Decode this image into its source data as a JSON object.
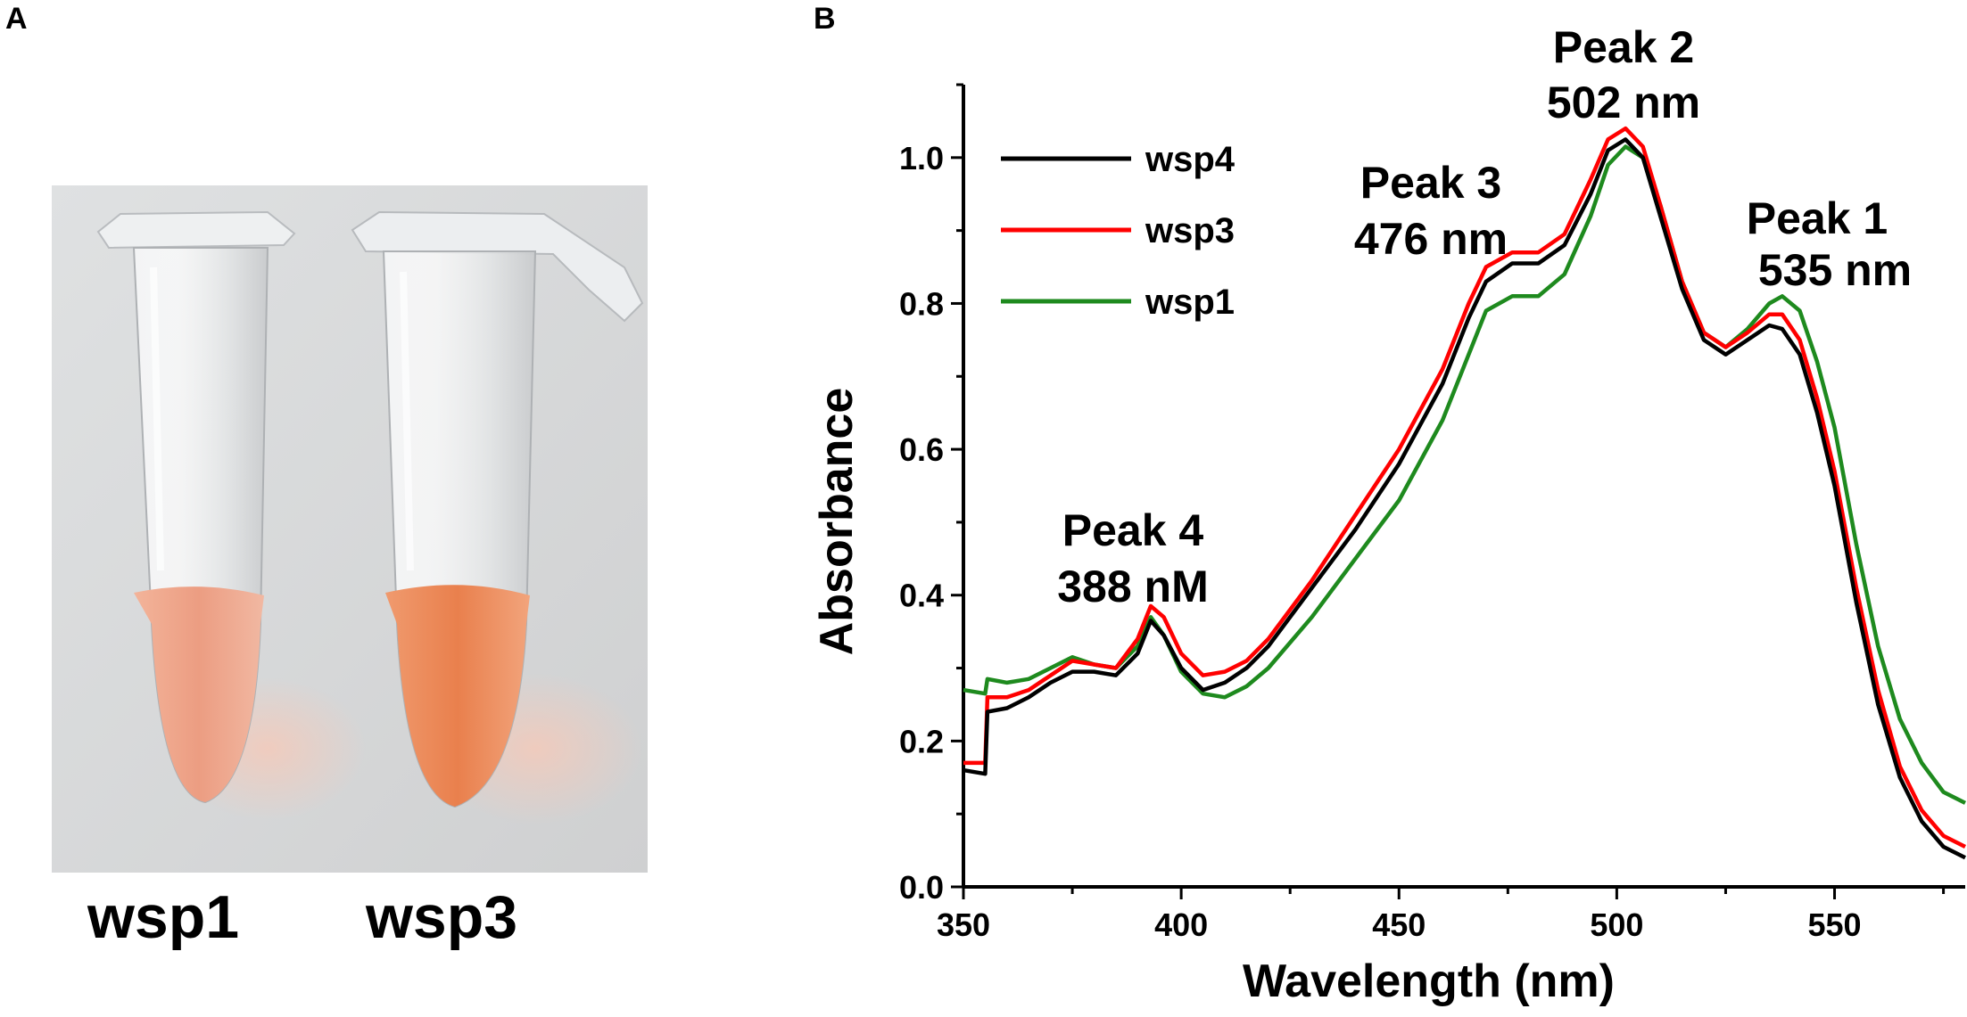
{
  "panel_a": {
    "letter": "A",
    "tube_labels": [
      "wsp1",
      "wsp3"
    ]
  },
  "panel_b": {
    "letter": "B"
  },
  "chart_data": {
    "type": "line",
    "title": "",
    "xlabel": "Wavelength (nm)",
    "ylabel": "Absorbance",
    "xlim": [
      350,
      580
    ],
    "ylim": [
      0.0,
      1.1
    ],
    "xticks": [
      350,
      400,
      450,
      500,
      550
    ],
    "yticks": [
      0.0,
      0.2,
      0.4,
      0.6,
      0.8,
      1.0
    ],
    "x": [
      350,
      355,
      355.5,
      360,
      365,
      370,
      375,
      380,
      385,
      390,
      393,
      396,
      400,
      405,
      410,
      415,
      420,
      430,
      440,
      450,
      460,
      466,
      470,
      476,
      482,
      488,
      494,
      498,
      502,
      506,
      510,
      515,
      520,
      525,
      530,
      535,
      538,
      542,
      546,
      550,
      555,
      560,
      565,
      570,
      575,
      580
    ],
    "series": [
      {
        "name": "wsp4",
        "color": "#000000",
        "values": [
          0.16,
          0.155,
          0.24,
          0.245,
          0.26,
          0.28,
          0.295,
          0.295,
          0.29,
          0.32,
          0.365,
          0.345,
          0.3,
          0.27,
          0.28,
          0.3,
          0.33,
          0.41,
          0.49,
          0.58,
          0.69,
          0.78,
          0.83,
          0.855,
          0.855,
          0.88,
          0.95,
          1.01,
          1.025,
          1.0,
          0.92,
          0.82,
          0.75,
          0.73,
          0.75,
          0.77,
          0.765,
          0.73,
          0.65,
          0.55,
          0.39,
          0.25,
          0.15,
          0.09,
          0.055,
          0.04
        ]
      },
      {
        "name": "wsp3",
        "color": "#ff0000",
        "values": [
          0.17,
          0.17,
          0.26,
          0.26,
          0.27,
          0.29,
          0.31,
          0.305,
          0.3,
          0.34,
          0.385,
          0.37,
          0.32,
          0.29,
          0.295,
          0.31,
          0.34,
          0.42,
          0.51,
          0.6,
          0.71,
          0.8,
          0.85,
          0.87,
          0.87,
          0.895,
          0.97,
          1.025,
          1.04,
          1.015,
          0.935,
          0.83,
          0.76,
          0.74,
          0.76,
          0.785,
          0.785,
          0.75,
          0.67,
          0.57,
          0.41,
          0.27,
          0.165,
          0.105,
          0.07,
          0.055
        ]
      },
      {
        "name": "wsp1",
        "color": "#1e8a1e",
        "values": [
          0.27,
          0.265,
          0.285,
          0.28,
          0.285,
          0.3,
          0.315,
          0.305,
          0.3,
          0.33,
          0.37,
          0.345,
          0.295,
          0.265,
          0.26,
          0.275,
          0.3,
          0.37,
          0.45,
          0.53,
          0.64,
          0.73,
          0.79,
          0.81,
          0.81,
          0.84,
          0.92,
          0.99,
          1.015,
          1.0,
          0.935,
          0.83,
          0.76,
          0.74,
          0.765,
          0.8,
          0.81,
          0.79,
          0.72,
          0.63,
          0.47,
          0.33,
          0.23,
          0.17,
          0.13,
          0.115
        ]
      }
    ],
    "legend": {
      "position": "top-left",
      "entries": [
        "wsp4",
        "wsp3",
        "wsp1"
      ]
    },
    "annotations": [
      {
        "line1": "Peak 4",
        "line2": "388 nM",
        "x": 388
      },
      {
        "line1": "Peak 3",
        "line2": "476 nm",
        "x": 476
      },
      {
        "line1": "Peak 2",
        "line2": "502 nm",
        "x": 502
      },
      {
        "line1": "Peak 1",
        "line2": "535 nm",
        "x": 535
      }
    ]
  }
}
